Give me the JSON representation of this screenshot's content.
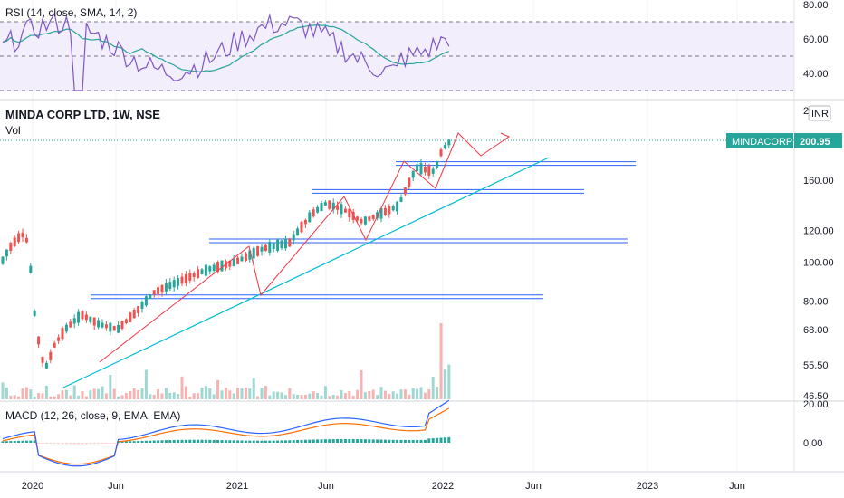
{
  "rsi": {
    "label": "RSI (14, close, SMA, 14, 2)",
    "axis_labels": [
      "80.00",
      "60.00",
      "40.00"
    ],
    "axis_values": [
      80,
      60,
      40
    ],
    "bands": [
      70,
      50,
      30
    ],
    "line_color": "#7e57c2",
    "ma_color": "#26a69a",
    "background": "#f2eefb"
  },
  "price": {
    "title": "MINDA CORP LTD, 1W, NSE",
    "vol_label": "Vol",
    "currency": "INR",
    "top_label": "2",
    "axis_labels": [
      "160.00",
      "120.00",
      "100.00",
      "80.00",
      "68.00",
      "55.50",
      "46.50"
    ],
    "axis_values": [
      160,
      120,
      100,
      80,
      68,
      55.5,
      46.5
    ],
    "ticker_label": "MINDACORP",
    "last_price": "200.95",
    "last_value": 200.95,
    "up_color": "#26a69a",
    "down_color": "#ef5350",
    "last_color": "#26a69a"
  },
  "macd": {
    "label": "MACD (12, 26, close, 9, EMA, EMA)",
    "axis_labels": [
      "20.00",
      "0.00"
    ],
    "axis_values": [
      20,
      0
    ],
    "macd_color": "#2962ff",
    "signal_color": "#ff6d00"
  },
  "time_axis": {
    "labels": [
      "2020",
      "Jun",
      "2021",
      "Jun",
      "2022",
      "Jun",
      "2023",
      "Jun"
    ]
  },
  "drawings": {
    "support_levels": [
      82,
      113,
      150,
      176
    ],
    "trendline_color": "#00bcd4",
    "level_color": "#2962ff",
    "path_color": "#f23645"
  }
}
